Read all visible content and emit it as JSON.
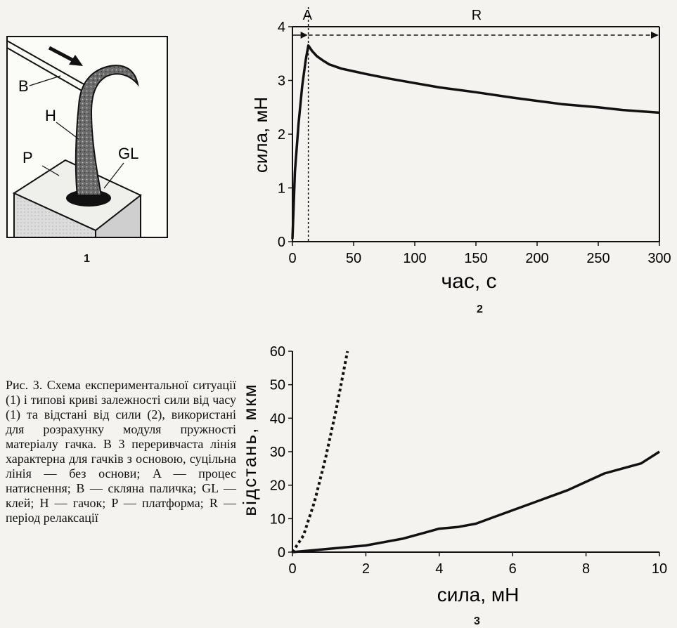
{
  "figure": {
    "panel_labels": [
      "1",
      "2",
      "3"
    ],
    "caption": "Рис. 3. Схема експериментальної ситуації (1) і типові криві залежності сили від часу (1) та відстані від сили (2), використані для розрахунку модуля пружності матеріалу гачка. В 3 переривчаста лінія характерна для гачків з основою, суцільна лінія — без основи; A — процес натиснення; B — скляна паличка; GL — клей; H — гачок; P — платформа; R — період релаксації",
    "diagram_labels": {
      "B": "B",
      "H": "H",
      "P": "P",
      "GL": "GL"
    }
  },
  "chart_data": [
    {
      "type": "line",
      "xlabel": "час, с",
      "ylabel": "сила, мН",
      "xlim": [
        0,
        300
      ],
      "ylim": [
        0,
        4
      ],
      "xticks": [
        0,
        50,
        100,
        150,
        200,
        250,
        300
      ],
      "yticks": [
        0,
        1,
        2,
        3,
        4
      ],
      "annotations": [
        "A",
        "R"
      ],
      "phase_boundary_x": 13,
      "series": [
        {
          "style": "solid",
          "x": [
            0,
            2,
            5,
            8,
            11,
            13,
            16,
            20,
            25,
            30,
            40,
            50,
            60,
            80,
            100,
            120,
            150,
            180,
            200,
            220,
            250,
            270,
            300
          ],
          "y": [
            0.05,
            1.3,
            2.2,
            2.9,
            3.4,
            3.65,
            3.55,
            3.45,
            3.37,
            3.3,
            3.22,
            3.17,
            3.12,
            3.03,
            2.95,
            2.87,
            2.78,
            2.68,
            2.62,
            2.56,
            2.5,
            2.45,
            2.4
          ]
        }
      ]
    },
    {
      "type": "line",
      "xlabel": "сила, мН",
      "ylabel": "відстань, мкм",
      "xlim": [
        0,
        10
      ],
      "ylim": [
        0,
        60
      ],
      "xticks": [
        0,
        2,
        4,
        6,
        8,
        10
      ],
      "yticks": [
        0,
        10,
        20,
        30,
        40,
        50,
        60
      ],
      "series": [
        {
          "style": "dashed",
          "x": [
            0,
            0.3,
            0.6,
            0.9,
            1.2,
            1.5
          ],
          "y": [
            0,
            5,
            15,
            28,
            43,
            60
          ]
        },
        {
          "style": "solid",
          "x": [
            0,
            0.5,
            1,
            1.5,
            2,
            2.5,
            3,
            3.5,
            4,
            4.5,
            5,
            5.5,
            6,
            6.5,
            7,
            7.5,
            8,
            8.5,
            9,
            9.5,
            10
          ],
          "y": [
            0,
            0.5,
            1,
            1.5,
            2,
            3,
            4,
            5.5,
            7,
            7.5,
            8.5,
            10.5,
            12.5,
            14.5,
            16.5,
            18.5,
            21,
            23.5,
            25,
            26.5,
            30
          ]
        }
      ]
    }
  ]
}
